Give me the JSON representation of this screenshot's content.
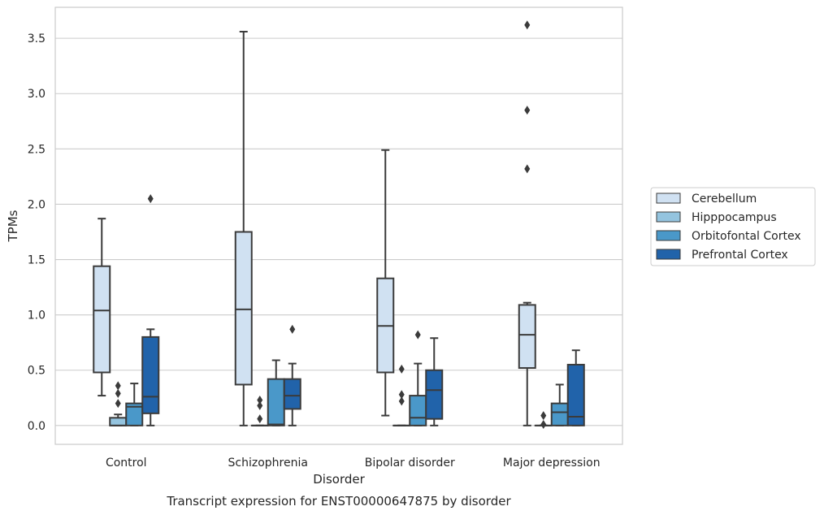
{
  "chart_data": {
    "type": "box",
    "caption": "Transcript expression for ENST00000647875 by disorder",
    "xlabel": "Disorder",
    "ylabel": "TPMs",
    "ylim": [
      -0.17,
      3.78
    ],
    "yticks": [
      0.0,
      0.5,
      1.0,
      1.5,
      2.0,
      2.5,
      3.0,
      3.5
    ],
    "ytick_labels": [
      "0.0",
      "0.5",
      "1.0",
      "1.5",
      "2.0",
      "2.5",
      "3.0",
      "3.5"
    ],
    "grid": true,
    "legend_position": "right",
    "categories": [
      "Control",
      "Schizophrenia",
      "Bipolar disorder",
      "Major depression"
    ],
    "series": [
      {
        "name": "Cerebellum",
        "color": "#d0e1f2",
        "boxes": [
          {
            "whislo": 0.27,
            "q1": 0.48,
            "med": 1.04,
            "q3": 1.44,
            "whishi": 1.87,
            "fliers": []
          },
          {
            "whislo": 0.0,
            "q1": 0.37,
            "med": 1.05,
            "q3": 1.75,
            "whishi": 3.56,
            "fliers": []
          },
          {
            "whislo": 0.09,
            "q1": 0.48,
            "med": 0.9,
            "q3": 1.33,
            "whishi": 2.49,
            "fliers": []
          },
          {
            "whislo": 0.0,
            "q1": 0.52,
            "med": 0.82,
            "q3": 1.09,
            "whishi": 1.11,
            "fliers": [
              2.32,
              2.85,
              3.62
            ]
          }
        ]
      },
      {
        "name": "Hipppocampus",
        "color": "#94c4df",
        "boxes": [
          {
            "whislo": 0.0,
            "q1": 0.0,
            "med": 0.0,
            "q3": 0.07,
            "whishi": 0.1,
            "fliers": [
              0.2,
              0.29,
              0.36
            ]
          },
          {
            "whislo": 0.0,
            "q1": 0.0,
            "med": 0.0,
            "q3": 0.0,
            "whishi": 0.0,
            "fliers": [
              0.06,
              0.18,
              0.23
            ]
          },
          {
            "whislo": 0.0,
            "q1": 0.0,
            "med": 0.0,
            "q3": 0.0,
            "whishi": 0.0,
            "fliers": [
              0.22,
              0.28,
              0.51
            ]
          },
          {
            "whislo": 0.0,
            "q1": 0.0,
            "med": 0.0,
            "q3": 0.0,
            "whishi": 0.0,
            "fliers": [
              0.01,
              0.09
            ]
          }
        ]
      },
      {
        "name": "Orbitofontal Cortex",
        "color": "#4a98c9",
        "boxes": [
          {
            "whislo": 0.0,
            "q1": 0.0,
            "med": 0.17,
            "q3": 0.2,
            "whishi": 0.38,
            "fliers": []
          },
          {
            "whislo": 0.0,
            "q1": 0.0,
            "med": 0.01,
            "q3": 0.42,
            "whishi": 0.59,
            "fliers": []
          },
          {
            "whislo": 0.0,
            "q1": 0.0,
            "med": 0.07,
            "q3": 0.27,
            "whishi": 0.56,
            "fliers": [
              0.82
            ]
          },
          {
            "whislo": 0.0,
            "q1": 0.0,
            "med": 0.12,
            "q3": 0.2,
            "whishi": 0.37,
            "fliers": []
          }
        ]
      },
      {
        "name": "Prefrontal Cortex",
        "color": "#2163aa",
        "boxes": [
          {
            "whislo": 0.0,
            "q1": 0.11,
            "med": 0.26,
            "q3": 0.8,
            "whishi": 0.87,
            "fliers": [
              2.05
            ]
          },
          {
            "whislo": 0.0,
            "q1": 0.15,
            "med": 0.27,
            "q3": 0.42,
            "whishi": 0.56,
            "fliers": [
              0.87
            ]
          },
          {
            "whislo": 0.0,
            "q1": 0.06,
            "med": 0.32,
            "q3": 0.5,
            "whishi": 0.79,
            "fliers": []
          },
          {
            "whislo": 0.0,
            "q1": 0.0,
            "med": 0.08,
            "q3": 0.55,
            "whishi": 0.68,
            "fliers": []
          }
        ]
      }
    ]
  }
}
